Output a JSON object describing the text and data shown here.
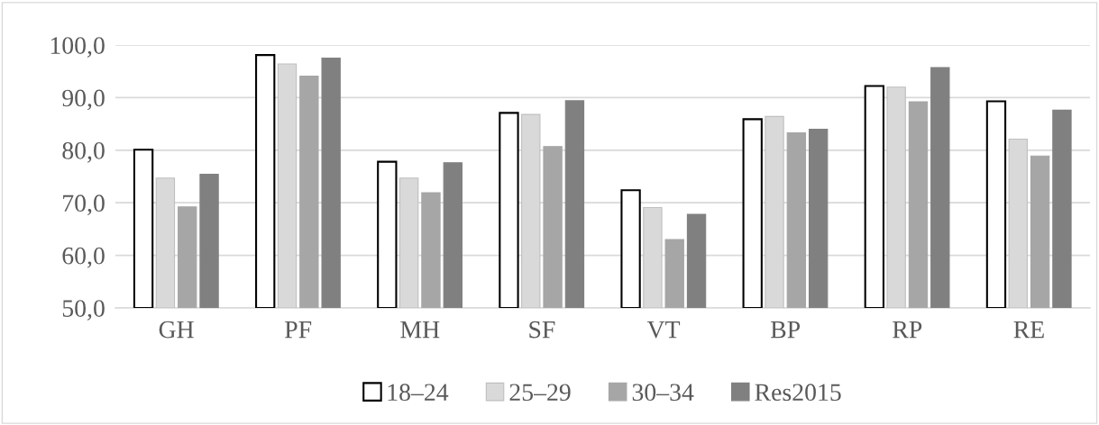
{
  "chart_data": {
    "type": "bar",
    "categories": [
      "GH",
      "PF",
      "MH",
      "SF",
      "VT",
      "BP",
      "RP",
      "RE"
    ],
    "series": [
      {
        "name": "18–24",
        "color": "#ffffff",
        "values": [
          80.1,
          98.1,
          77.8,
          87.1,
          72.4,
          85.9,
          92.2,
          89.3
        ]
      },
      {
        "name": "25–29",
        "color": "#d9d9d9",
        "values": [
          74.7,
          96.4,
          74.7,
          86.8,
          69.1,
          86.4,
          92.0,
          82.1
        ]
      },
      {
        "name": "30–34",
        "color": "#a6a6a6",
        "values": [
          69.2,
          94.1,
          71.9,
          80.7,
          63.0,
          83.3,
          89.2,
          78.9
        ]
      },
      {
        "name": "Res2015",
        "color": "#808080",
        "values": [
          75.4,
          97.5,
          77.6,
          89.4,
          67.8,
          84.0,
          95.7,
          87.6
        ]
      }
    ],
    "ylim": [
      50,
      100
    ],
    "yticks": [
      {
        "value": 50,
        "label": "50,0"
      },
      {
        "value": 60,
        "label": "60,0"
      },
      {
        "value": 70,
        "label": "70,0"
      },
      {
        "value": 80,
        "label": "80,0"
      },
      {
        "value": 90,
        "label": "90,0"
      },
      {
        "value": 100,
        "label": "100,0"
      }
    ],
    "grid": "y",
    "legend": "bottom"
  }
}
